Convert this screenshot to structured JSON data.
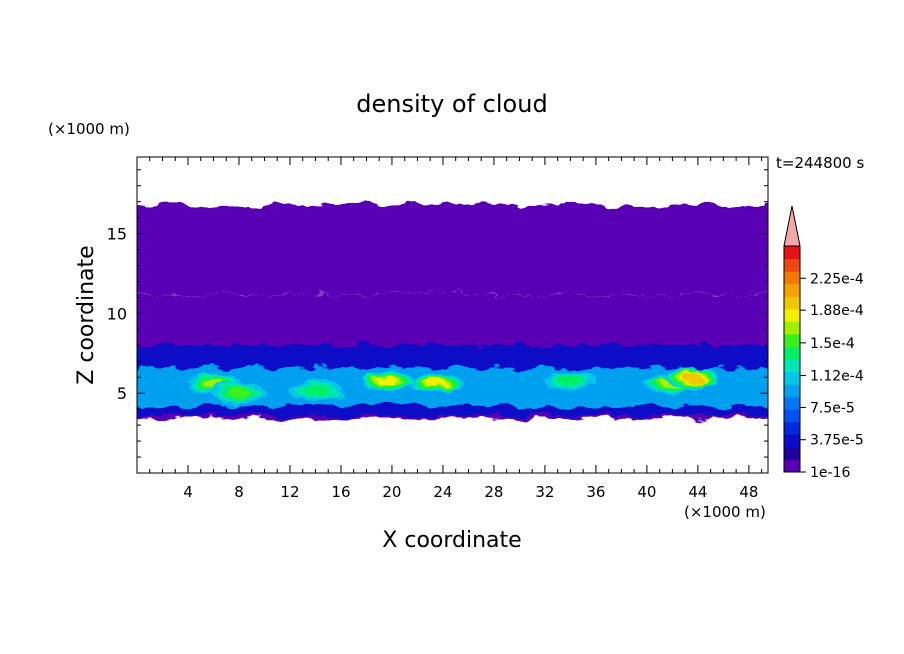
{
  "chart_data": {
    "type": "heatmap",
    "title": "density of cloud",
    "xlabel": "X coordinate",
    "ylabel": "Z coordinate",
    "x_unit": "(×1000 m)",
    "y_unit": "(×1000 m)",
    "time_label": "t=244800 s",
    "xlim": [
      0,
      49.5
    ],
    "ylim": [
      0,
      19.8
    ],
    "xticks": [
      4,
      8,
      12,
      16,
      20,
      24,
      28,
      32,
      36,
      40,
      44,
      48
    ],
    "yticks": [
      5,
      10,
      15
    ],
    "grid": false,
    "colorbar": {
      "levels": [
        "1e-16",
        "3.75e-5",
        "7.5e-5",
        "1.12e-4",
        "1.5e-4",
        "1.88e-4",
        "2.25e-4"
      ],
      "level_values": [
        1e-16,
        3.75e-05,
        7.5e-05,
        0.000112,
        0.00015,
        0.000188,
        0.000225
      ],
      "max_value": 0.0002625,
      "extend": "max",
      "colors": [
        "#5a00b4",
        "#1e00a0",
        "#0a0ac8",
        "#0028dc",
        "#0050f0",
        "#0078f5",
        "#00a0f0",
        "#00c8e6",
        "#00e6b4",
        "#00f064",
        "#3cf01e",
        "#a0f000",
        "#f0f000",
        "#f0c800",
        "#f5a000",
        "#f57800",
        "#f04614",
        "#e61414"
      ],
      "extend_color": "#f4a8a8"
    },
    "layers": [
      {
        "name": "base",
        "level": 0,
        "z_bottom": 3.4,
        "z_top": 7.6
      },
      {
        "name": "upper",
        "level": 0,
        "z_bottom": 7.6,
        "z_top": 11.2
      },
      {
        "name": "high",
        "level": 0,
        "z_bottom": 11.2,
        "z_top": 16.8
      },
      {
        "name": "mid-blue",
        "level": 2,
        "z_bottom": 3.6,
        "z_top": 8.0
      },
      {
        "name": "core",
        "level": 6,
        "z_bottom": 4.2,
        "z_top": 6.6
      }
    ],
    "hotspots": [
      {
        "x": 6,
        "z": 5.6,
        "level": 11
      },
      {
        "x": 8,
        "z": 5.0,
        "level": 10
      },
      {
        "x": 14,
        "z": 5.2,
        "level": 9
      },
      {
        "x": 19.6,
        "z": 5.8,
        "level": 12
      },
      {
        "x": 23.5,
        "z": 5.6,
        "level": 12
      },
      {
        "x": 34,
        "z": 5.8,
        "level": 9
      },
      {
        "x": 42,
        "z": 5.6,
        "level": 11
      },
      {
        "x": 43.5,
        "z": 6.0,
        "level": 13
      }
    ]
  }
}
